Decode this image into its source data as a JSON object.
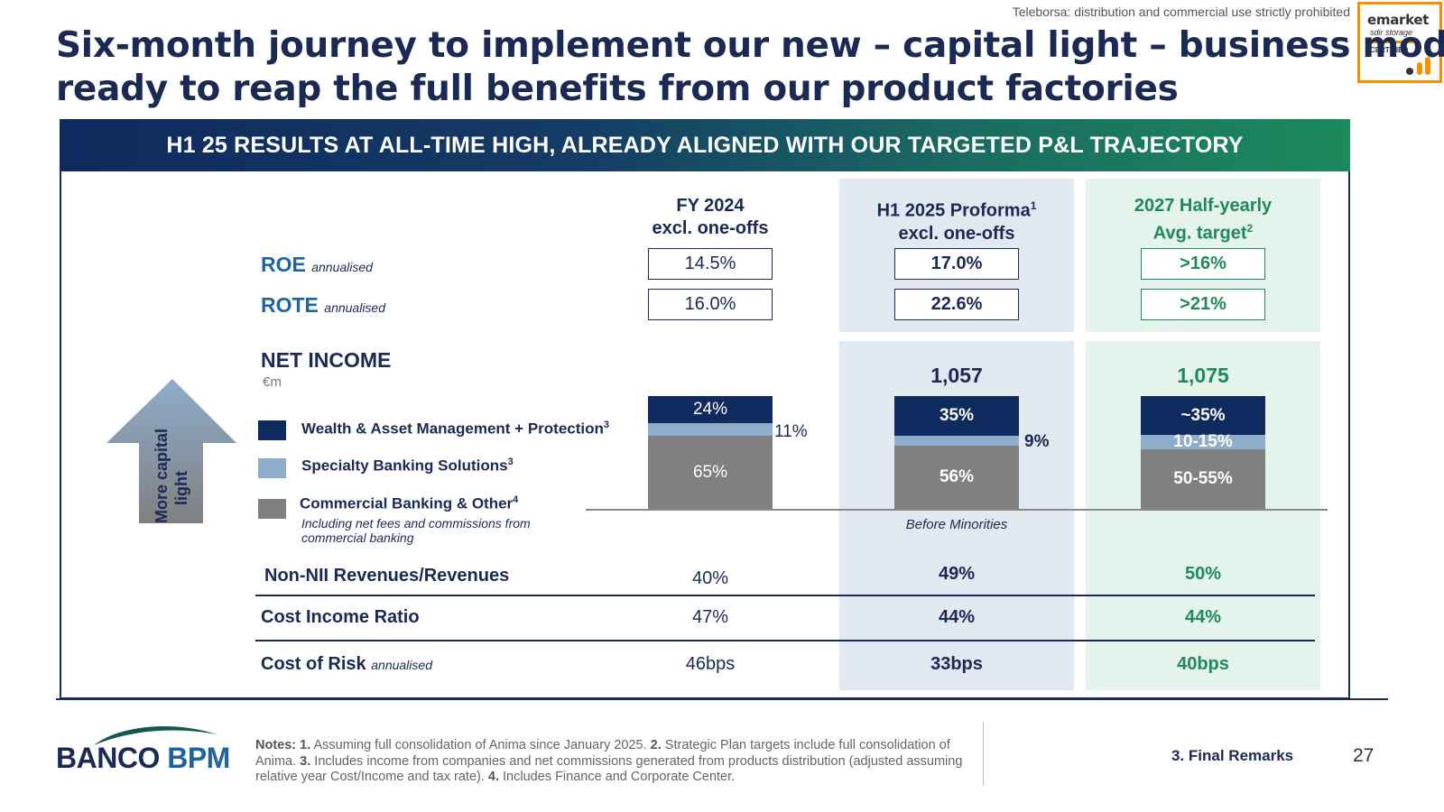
{
  "watermark": "Teleborsa: distribution and commercial use strictly prohibited",
  "badge": {
    "name": "emarket",
    "sub": "sdir storage",
    "certified": "CERTIFIED"
  },
  "title": {
    "line1": "Six-month journey to implement our new – capital light – business model:",
    "line2": "ready to reap the full benefits from our product factories"
  },
  "banner": "H1 25 RESULTS AT ALL-TIME HIGH, ALREADY ALIGNED WITH OUR TARGETED P&L TRAJECTORY",
  "columns": {
    "fy24": {
      "line1": "FY 2024",
      "line2": "excl. one-offs"
    },
    "h125": {
      "line1": "H1 2025 Proforma",
      "sup": "1",
      "line2": "excl. one-offs"
    },
    "t27": {
      "line1": "2027 Half-yearly",
      "line2": "Avg. target",
      "sup": "2"
    }
  },
  "roe": {
    "label": "ROE",
    "note": "annualised",
    "fy24": "14.5%",
    "h125": "17.0%",
    "t27": ">16%"
  },
  "rote": {
    "label": "ROTE",
    "note": "annualised",
    "fy24": "16.0%",
    "h125": "22.6%",
    "t27": ">21%"
  },
  "net_income": {
    "title": "NET INCOME",
    "unit": "€m",
    "h125_total": "1,057",
    "t27_total": "1,075",
    "arrow_label_1": "More capital",
    "arrow_label_2": "light",
    "legend": {
      "wealth": "Wealth & Asset Management + Protection",
      "wealth_sup": "3",
      "specialty": "Specialty Banking Solutions",
      "specialty_sup": "3",
      "commercial": "Commercial Banking & Other",
      "commercial_sup": "4",
      "commercial_note_1": "Including net fees and commissions from",
      "commercial_note_2": "commercial banking"
    },
    "fy24": {
      "wealth": "24%",
      "specialty": "11%",
      "commercial": "65%"
    },
    "h125": {
      "wealth": "35%",
      "specialty": "9%",
      "commercial": "56%"
    },
    "t27": {
      "wealth": "~35%",
      "specialty": "10-15%",
      "commercial": "50-55%"
    },
    "before_minorities": "Before Minorities"
  },
  "metrics": {
    "nonnii": {
      "label": "Non-NII Revenues/Revenues",
      "fy24": "40%",
      "h125": "49%",
      "t27": "50%"
    },
    "cir": {
      "label": "Cost Income Ratio",
      "fy24": "47%",
      "h125": "44%",
      "t27": "44%"
    },
    "cor": {
      "label": "Cost of Risk",
      "note": "annualised",
      "fy24": "46bps",
      "h125": "33bps",
      "t27": "40bps"
    }
  },
  "colors": {
    "navy": "#0f2a5e",
    "light_blue": "#8eaccb",
    "grey": "#808080",
    "green": "#1e8a58"
  },
  "footer": {
    "logo_a": "BANCO",
    "logo_b": "BPM",
    "notes_label": "Notes:",
    "n1": "1.",
    "n1_text": "Assuming full consolidation of Anima since January 2025.",
    "n2": "2.",
    "n2_text": "Strategic Plan targets include full consolidation of Anima.",
    "n3": "3.",
    "n3_text": "Includes income from companies and net commissions generated from products distribution (adjusted assuming relative year Cost/Income and tax rate).",
    "n4": "4.",
    "n4_text": "Includes Finance and Corporate Center.",
    "section": "3. Final Remarks",
    "page": "27"
  }
}
